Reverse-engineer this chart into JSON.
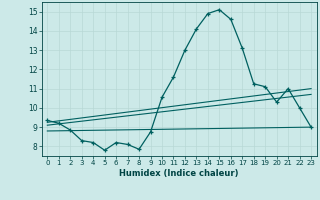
{
  "xlabel": "Humidex (Indice chaleur)",
  "background_color": "#cce9e8",
  "grid_color": "#b8d8d6",
  "line_color": "#006060",
  "xlim": [
    -0.5,
    23.5
  ],
  "ylim": [
    7.5,
    15.5
  ],
  "yticks": [
    8,
    9,
    10,
    11,
    12,
    13,
    14,
    15
  ],
  "xticks": [
    0,
    1,
    2,
    3,
    4,
    5,
    6,
    7,
    8,
    9,
    10,
    11,
    12,
    13,
    14,
    15,
    16,
    17,
    18,
    19,
    20,
    21,
    22,
    23
  ],
  "line1_x": [
    0,
    1,
    2,
    3,
    4,
    5,
    6,
    7,
    8,
    9,
    10,
    11,
    12,
    13,
    14,
    15,
    16,
    17,
    18,
    19,
    20,
    21,
    22,
    23
  ],
  "line1_y": [
    9.35,
    9.2,
    8.85,
    8.3,
    8.2,
    7.8,
    8.2,
    8.1,
    7.85,
    8.75,
    10.55,
    11.6,
    13.0,
    14.1,
    14.9,
    15.1,
    14.6,
    13.1,
    11.25,
    11.1,
    10.3,
    11.0,
    10.0,
    9.0
  ],
  "line2_x": [
    0,
    23
  ],
  "line2_y": [
    9.25,
    11.0
  ],
  "line3_x": [
    0,
    23
  ],
  "line3_y": [
    9.1,
    10.7
  ],
  "line4_x": [
    0,
    23
  ],
  "line4_y": [
    8.8,
    9.0
  ]
}
